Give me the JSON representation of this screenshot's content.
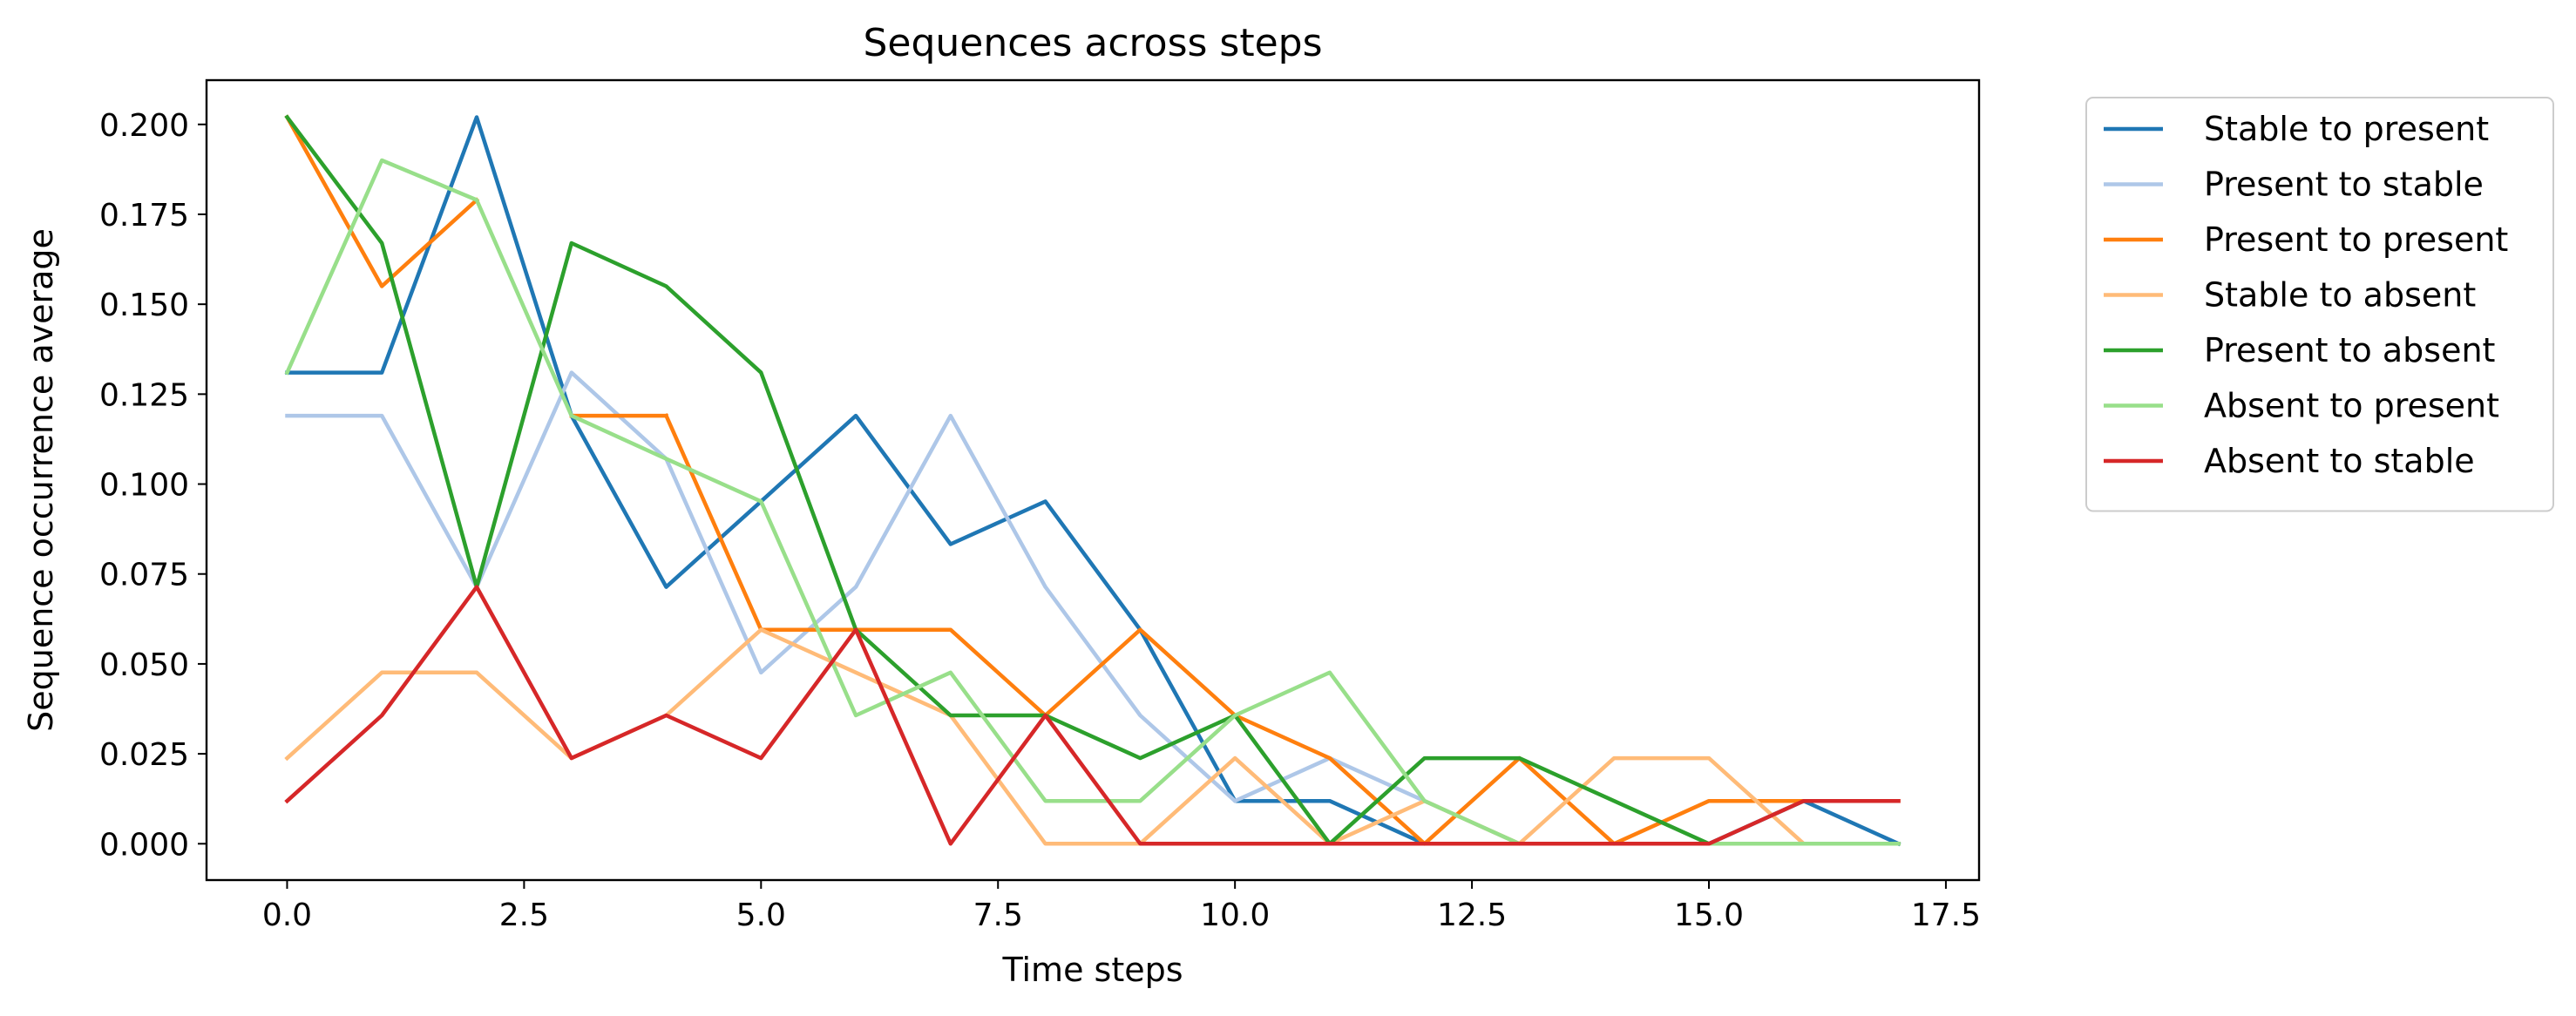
{
  "chart_data": {
    "type": "line",
    "title": "Sequences across steps",
    "xlabel": "Time steps",
    "ylabel": "Sequence occurrence average",
    "xlim": [
      -0.85,
      17.85
    ],
    "ylim": [
      -0.0101,
      0.2123
    ],
    "xticks": [
      0.0,
      2.5,
      5.0,
      7.5,
      10.0,
      12.5,
      15.0,
      17.5
    ],
    "xtick_labels": [
      "0.0",
      "2.5",
      "5.0",
      "7.5",
      "10.0",
      "12.5",
      "15.0",
      "17.5"
    ],
    "yticks": [
      0.0,
      0.025,
      0.05,
      0.075,
      0.1,
      0.125,
      0.15,
      0.175,
      0.2
    ],
    "ytick_labels": [
      "0.000",
      "0.025",
      "0.050",
      "0.075",
      "0.100",
      "0.125",
      "0.150",
      "0.175",
      "0.200"
    ],
    "grid": false,
    "legend_position": "outside-upper-right",
    "x": [
      0,
      1,
      2,
      3,
      4,
      5,
      6,
      7,
      8,
      9,
      10,
      11,
      12,
      13,
      14,
      15,
      16,
      17
    ],
    "series": [
      {
        "name": "Stable to present",
        "color": "#1f77b4",
        "values": [
          0.131,
          0.131,
          0.202,
          0.119,
          0.0714,
          0.0952,
          0.119,
          0.0833,
          0.0952,
          0.0595,
          0.0119,
          0.0119,
          0.0,
          0.0,
          0.0,
          0.0,
          0.0119,
          0.0
        ]
      },
      {
        "name": "Present to stable",
        "color": "#aec7e8",
        "values": [
          0.119,
          0.119,
          0.0714,
          0.131,
          0.107,
          0.0476,
          0.0714,
          0.119,
          0.0714,
          0.0357,
          0.0119,
          0.0238,
          0.0119,
          0.0,
          0.0,
          0.0,
          0.0,
          0.0
        ]
      },
      {
        "name": "Present to present",
        "color": "#ff7f0e",
        "values": [
          0.202,
          0.155,
          0.179,
          null,
          0.119,
          0.0595,
          0.0595,
          0.0595,
          0.0357,
          0.0595,
          0.0357,
          0.0238,
          0.0,
          0.0238,
          0.0,
          0.0119,
          0.0119,
          0.0119
        ],
        "extra_segment": {
          "x": [
            3,
            4
          ],
          "values": [
            0.119,
            0.119
          ]
        }
      },
      {
        "name": "Stable to absent",
        "color": "#ffbb78",
        "values": [
          0.0238,
          0.0476,
          0.0476,
          0.0238,
          0.0357,
          0.0595,
          0.0476,
          0.0357,
          0.0,
          0.0,
          0.0238,
          0.0,
          0.0119,
          0.0,
          0.0238,
          0.0238,
          0.0,
          0.0
        ]
      },
      {
        "name": "Present to absent",
        "color": "#2ca02c",
        "values": [
          0.202,
          0.167,
          0.0714,
          0.167,
          0.155,
          0.131,
          0.0595,
          0.0357,
          0.0357,
          0.0238,
          0.0357,
          0.0,
          0.0238,
          0.0238,
          0.0119,
          0.0,
          0.0,
          0.0
        ]
      },
      {
        "name": "Absent to present",
        "color": "#98df8a",
        "values": [
          0.131,
          0.19,
          0.179,
          0.119,
          0.107,
          0.0952,
          0.0357,
          0.0476,
          0.0119,
          0.0119,
          0.0357,
          0.0476,
          0.0119,
          0.0,
          0.0,
          0.0,
          0.0,
          0.0
        ]
      },
      {
        "name": "Absent to stable",
        "color": "#d62728",
        "values": [
          0.0119,
          0.0357,
          0.0714,
          0.0238,
          0.0357,
          0.0238,
          0.0595,
          0.0,
          0.0357,
          0.0,
          0.0,
          0.0,
          0.0,
          0.0,
          0.0,
          0.0,
          0.0119,
          0.0119
        ]
      }
    ]
  }
}
